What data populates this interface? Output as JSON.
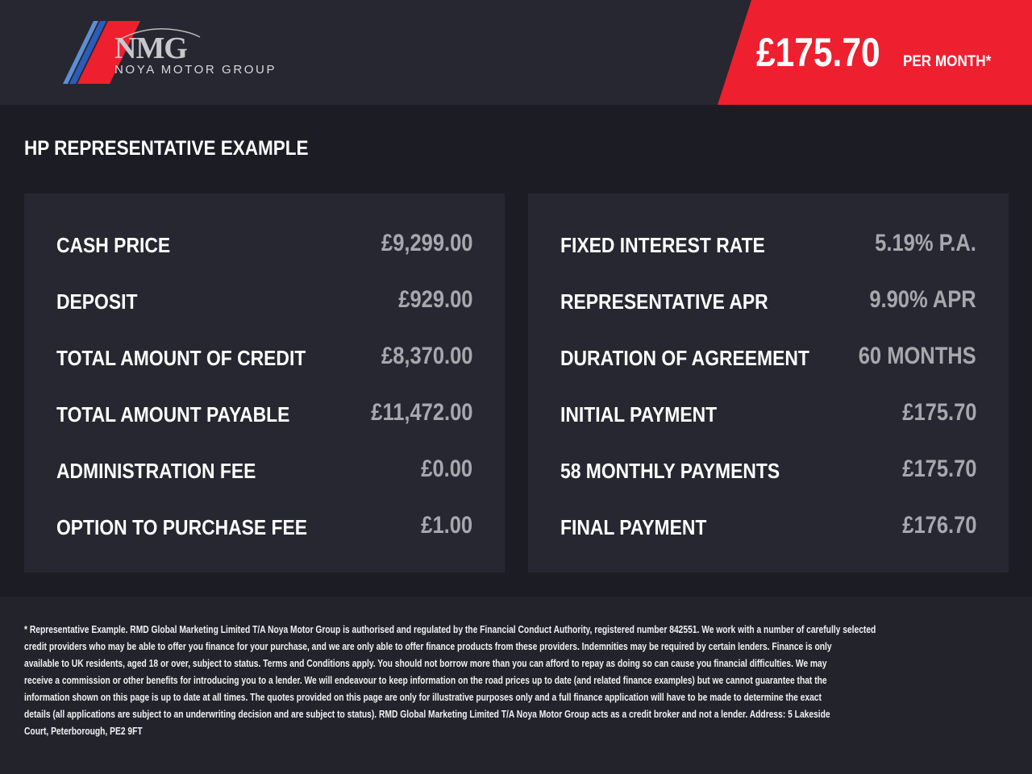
{
  "header": {
    "logo_text": "NMG",
    "logo_subtitle": "NOYA MOTOR GROUP",
    "price": "£175.70",
    "per_month": "PER MONTH*",
    "accent": "#ee1f2e"
  },
  "title": "HP REPRESENTATIVE EXAMPLE",
  "left": [
    {
      "label": "CASH PRICE",
      "value": "£9,299.00"
    },
    {
      "label": "DEPOSIT",
      "value": "£929.00"
    },
    {
      "label": "TOTAL AMOUNT OF CREDIT",
      "value": "£8,370.00"
    },
    {
      "label": "TOTAL AMOUNT PAYABLE",
      "value": "£11,472.00"
    },
    {
      "label": "ADMINISTRATION FEE",
      "value": "£0.00"
    },
    {
      "label": "OPTION TO PURCHASE FEE",
      "value": "£1.00"
    }
  ],
  "right": [
    {
      "label": "FIXED INTEREST RATE",
      "value": "5.19% P.A."
    },
    {
      "label": "REPRESENTATIVE APR",
      "value": "9.90% APR"
    },
    {
      "label": "DURATION OF AGREEMENT",
      "value": "60 MONTHS"
    },
    {
      "label": "INITIAL PAYMENT",
      "value": "£175.70"
    },
    {
      "label": "58 MONTHLY PAYMENTS",
      "value": "£175.70"
    },
    {
      "label": "FINAL PAYMENT",
      "value": "£176.70"
    }
  ],
  "disclaimer": [
    "* Representative Example. RMD Global Marketing Limited T/A Noya Motor Group is authorised and regulated by the Financial Conduct Authority, registered number 842551. We work with a number of carefully selected",
    "credit providers who may be able to offer you finance for your purchase, and we are only able to offer finance products from these providers. Indemnities may be required by certain lenders. Finance is only",
    "available to UK residents, aged 18 or over, subject to status. Terms and Conditions apply. You should not borrow more than you can afford to repay as doing so can cause you financial difficulties. We may",
    "receive a commission or other benefits for introducing you to a lender. We will endeavour to keep information on the road prices up to date (and related finance examples) but we cannot guarantee that the",
    "information shown on this page is up to date at all times. The quotes provided on this page are only for illustrative purposes only and a full finance application will have to be made to determine the exact",
    "details (all applications are subject to an underwriting decision and are subject to status). RMD Global Marketing Limited T/A Noya Motor Group acts as a credit broker and not a lender. Address:  5 Lakeside",
    "Court, Peterborough, PE2 9FT"
  ]
}
